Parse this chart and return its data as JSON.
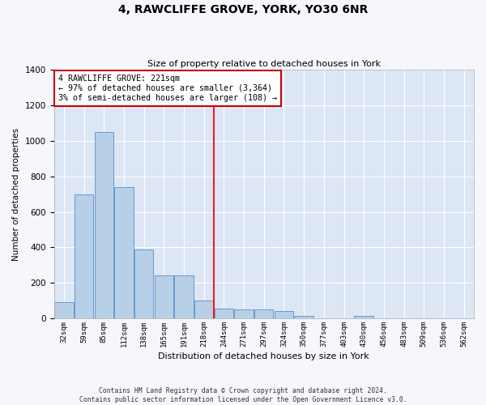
{
  "title": "4, RAWCLIFFE GROVE, YORK, YO30 6NR",
  "subtitle": "Size of property relative to detached houses in York",
  "xlabel": "Distribution of detached houses by size in York",
  "ylabel": "Number of detached properties",
  "bar_labels": [
    "32sqm",
    "59sqm",
    "85sqm",
    "112sqm",
    "138sqm",
    "165sqm",
    "191sqm",
    "218sqm",
    "244sqm",
    "271sqm",
    "297sqm",
    "324sqm",
    "350sqm",
    "377sqm",
    "403sqm",
    "430sqm",
    "456sqm",
    "483sqm",
    "509sqm",
    "536sqm",
    "562sqm"
  ],
  "bar_values": [
    90,
    700,
    1050,
    740,
    390,
    240,
    240,
    100,
    55,
    50,
    50,
    40,
    15,
    0,
    0,
    15,
    0,
    0,
    0,
    0,
    0
  ],
  "bar_color": "#b8cfe8",
  "bar_edge_color": "#6699cc",
  "plot_bg_color": "#dce6f5",
  "fig_bg_color": "#f5f7fc",
  "grid_color": "#ffffff",
  "red_line_x": 7.5,
  "annotation_text": "4 RAWCLIFFE GROVE: 221sqm\n← 97% of detached houses are smaller (3,364)\n3% of semi-detached houses are larger (108) →",
  "annotation_box_facecolor": "#ffffff",
  "annotation_box_edgecolor": "#cc0000",
  "ylim": [
    0,
    1400
  ],
  "yticks": [
    0,
    200,
    400,
    600,
    800,
    1000,
    1200,
    1400
  ],
  "footer_line1": "Contains HM Land Registry data © Crown copyright and database right 2024.",
  "footer_line2": "Contains public sector information licensed under the Open Government Licence v3.0."
}
